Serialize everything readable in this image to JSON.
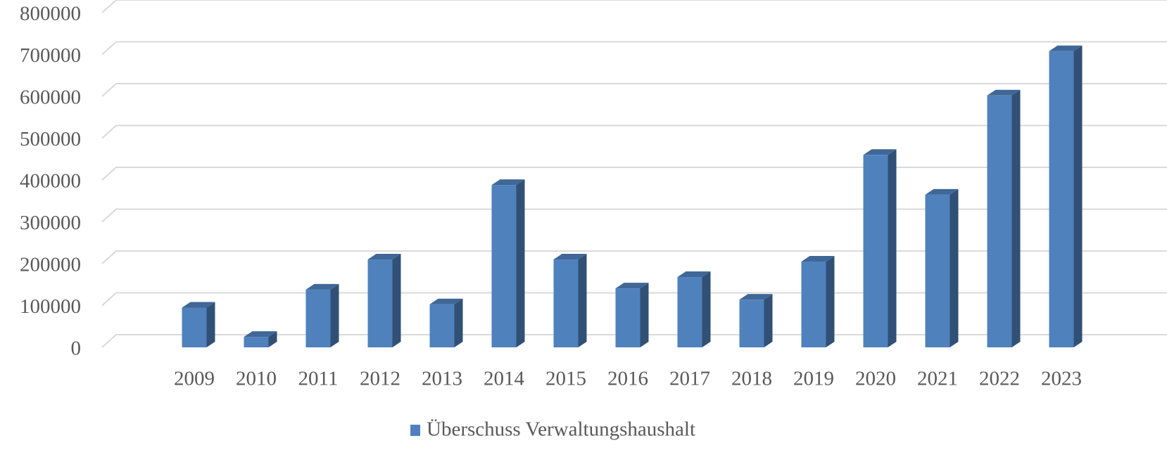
{
  "chart_data": {
    "type": "bar3d",
    "categories": [
      "2009",
      "2010",
      "2011",
      "2012",
      "2013",
      "2014",
      "2015",
      "2016",
      "2017",
      "2018",
      "2019",
      "2020",
      "2021",
      "2022",
      "2023"
    ],
    "series": [
      {
        "name": "Überschuss Verwaltungshaushalt",
        "color": "#4f81bd",
        "values": [
          95000,
          25000,
          138000,
          210000,
          103000,
          388000,
          210000,
          141000,
          168000,
          114000,
          205000,
          460000,
          365000,
          602000,
          708000
        ]
      }
    ],
    "ylim": [
      0,
      800000
    ],
    "yticks": [
      0,
      100000,
      200000,
      300000,
      400000,
      500000,
      600000,
      700000,
      800000
    ],
    "grid": true,
    "legend": "bottom"
  }
}
